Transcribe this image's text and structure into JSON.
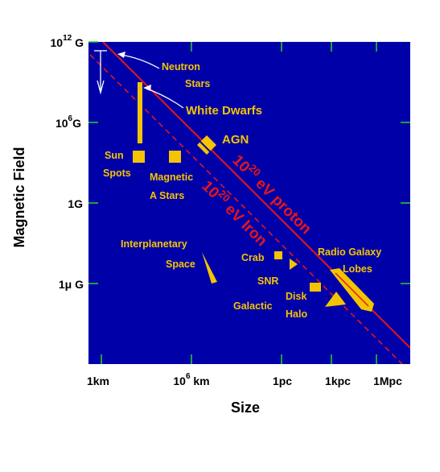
{
  "colors": {
    "plot_background": "#0000a8",
    "objects": "#f5c400",
    "limit_lines": "#e5161a",
    "ticks": "#26d426",
    "arrows": "#ffffff"
  },
  "axes": {
    "y_title": "Magnetic Field",
    "x_title": "Size",
    "y_ticks": [
      {
        "base": "10",
        "exp": "12",
        "unit": " G"
      },
      {
        "base": "10",
        "exp": "6",
        "unit": "G"
      },
      {
        "base": "1G",
        "exp": "",
        "unit": ""
      },
      {
        "base": "1μ G",
        "exp": "",
        "unit": ""
      }
    ],
    "x_ticks": [
      {
        "base": "1km",
        "exp": "",
        "unit": ""
      },
      {
        "base": "10",
        "exp": "6",
        "unit": " km"
      },
      {
        "base": "1pc",
        "exp": "",
        "unit": ""
      },
      {
        "base": "1kpc",
        "exp": "",
        "unit": ""
      },
      {
        "base": "1Mpc",
        "exp": "",
        "unit": ""
      }
    ]
  },
  "limit_lines": {
    "proton": {
      "base": "10",
      "exp": "20",
      "rest": " eV proton"
    },
    "iron": {
      "base": "10",
      "exp": "20",
      "rest": " eV Iron"
    }
  },
  "objects": {
    "neutron_stars": [
      "Neutron",
      "Stars"
    ],
    "white_dwarfs": "White Dwarfs",
    "agn": "AGN",
    "sun_spots": [
      "Sun",
      "Spots"
    ],
    "magnetic_a_stars": [
      "Magnetic",
      "A Stars"
    ],
    "interplanetary_space": [
      "Interplanetary",
      "Space"
    ],
    "crab": "Crab",
    "snr": "SNR",
    "radio_galaxy_lobes": [
      "Radio Galaxy",
      "Lobes"
    ],
    "disk": "Disk",
    "halo": "Halo",
    "galactic": "Galactic"
  }
}
